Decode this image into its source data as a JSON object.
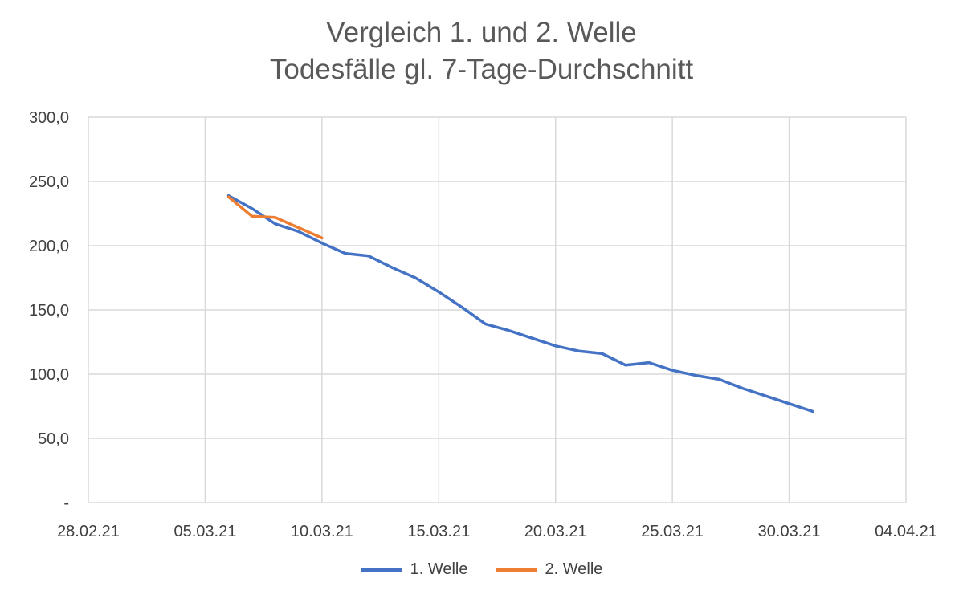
{
  "chart_data": {
    "type": "line",
    "title": "Vergleich 1. und 2. Welle",
    "subtitle": "Todesfälle gl. 7-Tage-Durchschnitt",
    "xlabel": "",
    "ylabel": "",
    "x_axis": {
      "type": "date",
      "range": [
        "28.02.21",
        "04.04.21"
      ],
      "tick_labels": [
        "28.02.21",
        "05.03.21",
        "10.03.21",
        "15.03.21",
        "20.03.21",
        "25.03.21",
        "30.03.21",
        "04.04.21"
      ]
    },
    "y_axis": {
      "range": [
        0,
        300
      ],
      "tick_values": [
        0,
        50,
        100,
        150,
        200,
        250,
        300
      ],
      "tick_labels": [
        "-",
        "50,0",
        "100,0",
        "150,0",
        "200,0",
        "250,0",
        "300,0"
      ]
    },
    "grid": true,
    "legend_position": "bottom",
    "series": [
      {
        "name": "1. Welle",
        "color": "#4472C4",
        "x": [
          "06.03.21",
          "07.03.21",
          "08.03.21",
          "09.03.21",
          "10.03.21",
          "11.03.21",
          "12.03.21",
          "13.03.21",
          "14.03.21",
          "15.03.21",
          "16.03.21",
          "17.03.21",
          "18.03.21",
          "19.03.21",
          "20.03.21",
          "21.03.21",
          "22.03.21",
          "23.03.21",
          "24.03.21",
          "25.03.21",
          "26.03.21",
          "27.03.21",
          "28.03.21",
          "29.03.21",
          "30.03.21",
          "31.03.21"
        ],
        "y": [
          239,
          229,
          217,
          211,
          202,
          194,
          192,
          183,
          175,
          164,
          152,
          139,
          134,
          128,
          122,
          118,
          116,
          107,
          109,
          103,
          99,
          96,
          89,
          83,
          77,
          71
        ]
      },
      {
        "name": "2. Welle",
        "color": "#ED7D31",
        "x": [
          "06.03.21",
          "07.03.21",
          "08.03.21",
          "09.03.21",
          "10.03.21"
        ],
        "y": [
          238,
          223,
          222,
          214,
          206
        ]
      }
    ]
  }
}
